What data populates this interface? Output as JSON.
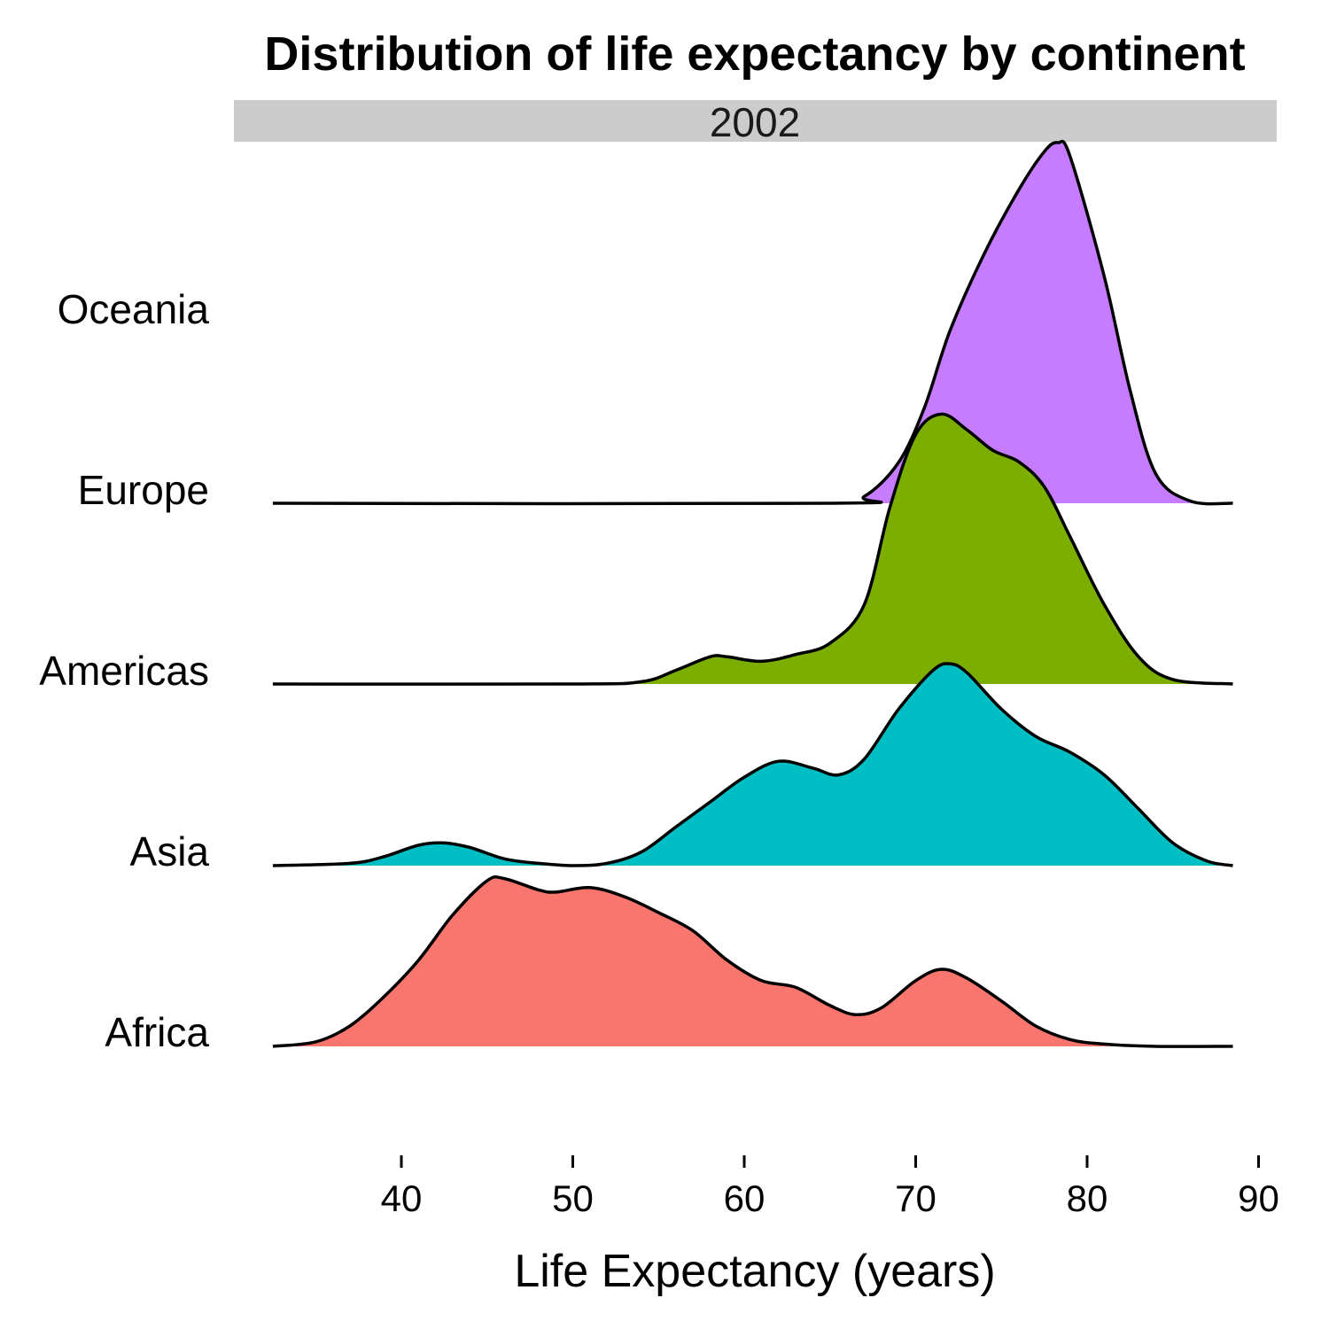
{
  "chart_data": {
    "type": "ridgeline",
    "title": "Distribution of life expectancy by continent",
    "facet": "2002",
    "xlabel": "Life Expectancy (years)",
    "ylabel": "",
    "xlim": [
      32.5,
      91
    ],
    "x_ticks": [
      40,
      50,
      60,
      70,
      80,
      90
    ],
    "grid": false,
    "legend": "none",
    "series": [
      {
        "name": "Africa",
        "color": "#F8766D",
        "density": [
          [
            32.5,
            0.0
          ],
          [
            35,
            0.02
          ],
          [
            37,
            0.09
          ],
          [
            39,
            0.22
          ],
          [
            41,
            0.38
          ],
          [
            43,
            0.58
          ],
          [
            45,
            0.73
          ],
          [
            46,
            0.74
          ],
          [
            48,
            0.69
          ],
          [
            49,
            0.68
          ],
          [
            51,
            0.7
          ],
          [
            53,
            0.66
          ],
          [
            55,
            0.59
          ],
          [
            57,
            0.51
          ],
          [
            59,
            0.38
          ],
          [
            61,
            0.29
          ],
          [
            63,
            0.26
          ],
          [
            65,
            0.18
          ],
          [
            66.5,
            0.14
          ],
          [
            68,
            0.17
          ],
          [
            70,
            0.29
          ],
          [
            71.5,
            0.34
          ],
          [
            73,
            0.3
          ],
          [
            75,
            0.2
          ],
          [
            77,
            0.09
          ],
          [
            79,
            0.03
          ],
          [
            81,
            0.01
          ],
          [
            84,
            0.0
          ],
          [
            88.5,
            0.0
          ]
        ]
      },
      {
        "name": "Asia",
        "color": "#00BFC4",
        "density": [
          [
            32.5,
            0.0
          ],
          [
            37,
            0.01
          ],
          [
            39,
            0.04
          ],
          [
            41,
            0.09
          ],
          [
            42.5,
            0.1
          ],
          [
            44,
            0.08
          ],
          [
            46,
            0.03
          ],
          [
            48,
            0.01
          ],
          [
            50,
            0.0
          ],
          [
            52,
            0.01
          ],
          [
            54,
            0.06
          ],
          [
            56,
            0.17
          ],
          [
            58,
            0.28
          ],
          [
            60,
            0.39
          ],
          [
            62,
            0.46
          ],
          [
            64,
            0.43
          ],
          [
            65.5,
            0.4
          ],
          [
            67,
            0.47
          ],
          [
            69,
            0.69
          ],
          [
            71,
            0.86
          ],
          [
            72,
            0.89
          ],
          [
            73,
            0.85
          ],
          [
            75,
            0.69
          ],
          [
            77,
            0.57
          ],
          [
            79,
            0.5
          ],
          [
            81,
            0.4
          ],
          [
            83,
            0.25
          ],
          [
            85,
            0.1
          ],
          [
            87,
            0.02
          ],
          [
            88.5,
            0.0
          ]
        ]
      },
      {
        "name": "Americas",
        "color": "#7CAE00",
        "density": [
          [
            32.5,
            0.0
          ],
          [
            50,
            0.0
          ],
          [
            54,
            0.01
          ],
          [
            56,
            0.06
          ],
          [
            58,
            0.12
          ],
          [
            59,
            0.12
          ],
          [
            61,
            0.1
          ],
          [
            63,
            0.13
          ],
          [
            65,
            0.18
          ],
          [
            67,
            0.35
          ],
          [
            68.5,
            0.78
          ],
          [
            70,
            1.1
          ],
          [
            71.5,
            1.19
          ],
          [
            73,
            1.12
          ],
          [
            74.5,
            1.03
          ],
          [
            76,
            0.98
          ],
          [
            77.5,
            0.87
          ],
          [
            79,
            0.65
          ],
          [
            81,
            0.35
          ],
          [
            83,
            0.12
          ],
          [
            85,
            0.02
          ],
          [
            88.5,
            0.0
          ]
        ]
      },
      {
        "name": "Europe",
        "color": "#C77CFF",
        "density": [
          [
            32.5,
            0.0
          ],
          [
            65,
            0.0
          ],
          [
            67,
            0.03
          ],
          [
            69,
            0.18
          ],
          [
            70.5,
            0.42
          ],
          [
            72,
            0.76
          ],
          [
            74,
            1.1
          ],
          [
            76,
            1.38
          ],
          [
            77.5,
            1.55
          ],
          [
            78.3,
            1.59
          ],
          [
            79,
            1.53
          ],
          [
            81,
            1.0
          ],
          [
            82.5,
            0.5
          ],
          [
            84,
            0.13
          ],
          [
            86,
            0.01
          ],
          [
            88.5,
            0.0
          ]
        ]
      },
      {
        "name": "Oceania",
        "color": "#C77CFF",
        "density": []
      }
    ]
  },
  "categories": [
    "Africa",
    "Asia",
    "Americas",
    "Europe",
    "Oceania"
  ]
}
